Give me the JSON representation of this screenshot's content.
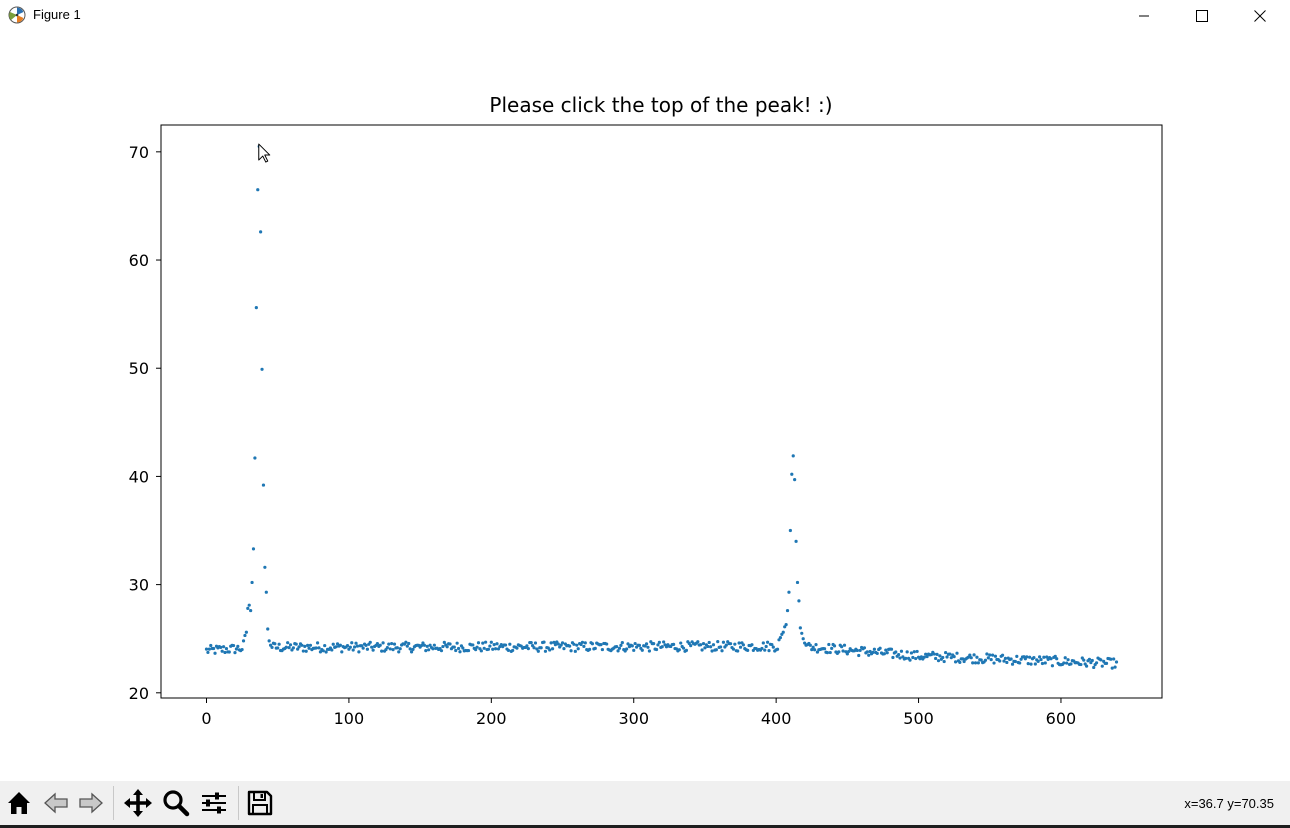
{
  "window": {
    "title": "Figure 1",
    "icons": [
      "app-icon",
      "minimize-icon",
      "maximize-icon",
      "close-icon"
    ]
  },
  "toolbar": {
    "icons": [
      "home-icon",
      "back-icon",
      "forward-icon",
      "pan-icon",
      "zoom-icon",
      "configure-subplots-icon",
      "save-icon"
    ],
    "coords": "x=36.7 y=70.35"
  },
  "colors": {
    "marker": "#1f77b4",
    "toolbar_bg": "#f0f0f0"
  },
  "chart_data": {
    "type": "scatter",
    "title": "Please click the top of the peak! :)",
    "xlabel": "",
    "ylabel": "",
    "xlim": [
      -31.95,
      670.95
    ],
    "ylim": [
      19.52,
      72.48
    ],
    "xticks": [
      0,
      100,
      200,
      300,
      400,
      500,
      600
    ],
    "yticks": [
      20,
      30,
      40,
      50,
      60,
      70
    ],
    "grid": false,
    "legend": "none",
    "n_points": 640,
    "baseline": [
      [
        0,
        23.9
      ],
      [
        24,
        24.1
      ],
      [
        30,
        24.2
      ],
      [
        400,
        24.3
      ],
      [
        420,
        24.3
      ],
      [
        500,
        23.4
      ],
      [
        640,
        22.7
      ]
    ],
    "noise": 0.45,
    "peaks": [
      {
        "x": [
          26,
          27,
          28,
          29,
          30,
          31,
          32,
          33,
          34,
          35,
          36,
          37,
          38,
          39,
          40,
          41,
          42,
          43,
          44,
          45,
          46
        ],
        "y": [
          24.8,
          25.3,
          25.6,
          27.8,
          28.1,
          27.6,
          30.2,
          33.3,
          41.7,
          55.6,
          66.5,
          70.5,
          62.6,
          49.9,
          39.2,
          31.6,
          29.3,
          25.9,
          24.8,
          24.4,
          24.2
        ]
      },
      {
        "x": [
          402,
          403,
          404,
          405,
          406,
          407,
          408,
          409,
          410,
          411,
          412,
          413,
          414,
          415,
          416,
          417,
          418,
          419,
          420,
          421
        ],
        "y": [
          24.9,
          25.1,
          25.4,
          25.6,
          26.1,
          26.3,
          27.6,
          29.3,
          35.0,
          40.2,
          41.9,
          39.7,
          34.0,
          30.2,
          28.5,
          26.0,
          25.5,
          25.0,
          24.6,
          24.4
        ]
      }
    ],
    "cursor": {
      "x": 36.7,
      "y": 70.35
    }
  }
}
